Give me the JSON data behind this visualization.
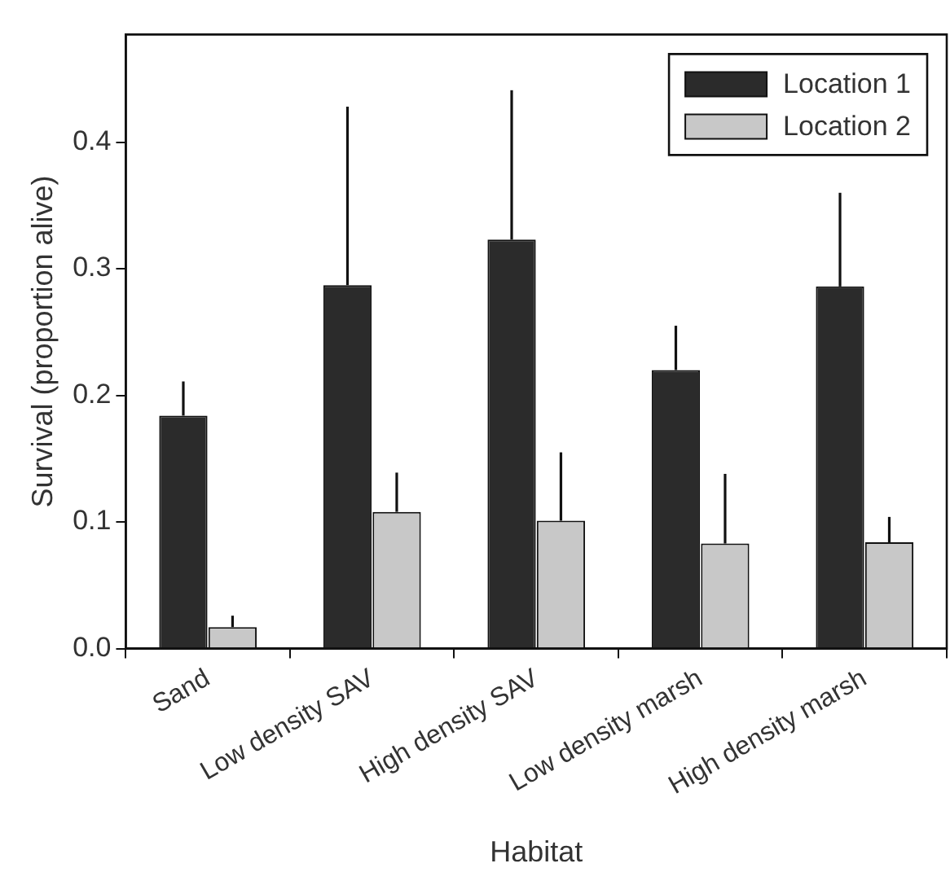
{
  "chart_data": {
    "type": "bar",
    "xlabel": "Habitat",
    "ylabel": "Survival (proportion alive)",
    "categories": [
      "Sand",
      "Low density SAV",
      "High density SAV",
      "Low density marsh",
      "High density marsh"
    ],
    "series": [
      {
        "name": "Location 1",
        "color": "#2b2b2b",
        "values": [
          0.184,
          0.287,
          0.323,
          0.22,
          0.286
        ],
        "errors": [
          [
            0.184,
            0.211
          ],
          [
            0.287,
            0.428
          ],
          [
            0.323,
            0.441
          ],
          [
            0.22,
            0.255
          ],
          [
            0.286,
            0.36
          ]
        ]
      },
      {
        "name": "Location 2",
        "color": "#c8c8c8",
        "values": [
          0.017,
          0.108,
          0.101,
          0.083,
          0.084
        ],
        "errors": [
          [
            0.017,
            0.026
          ],
          [
            0.108,
            0.139
          ],
          [
            0.101,
            0.155
          ],
          [
            0.083,
            0.138
          ],
          [
            0.084,
            0.104
          ]
        ]
      }
    ],
    "ylim": [
      0,
      0.485
    ],
    "yticks": [
      {
        "value": 0,
        "label": "0.0"
      },
      {
        "value": 0.1,
        "label": "0.1"
      },
      {
        "value": 0.2,
        "label": "0.2"
      },
      {
        "value": 0.3,
        "label": "0.3"
      },
      {
        "value": 0.4,
        "label": "0.4"
      }
    ],
    "grid": false,
    "legend": "top right"
  }
}
